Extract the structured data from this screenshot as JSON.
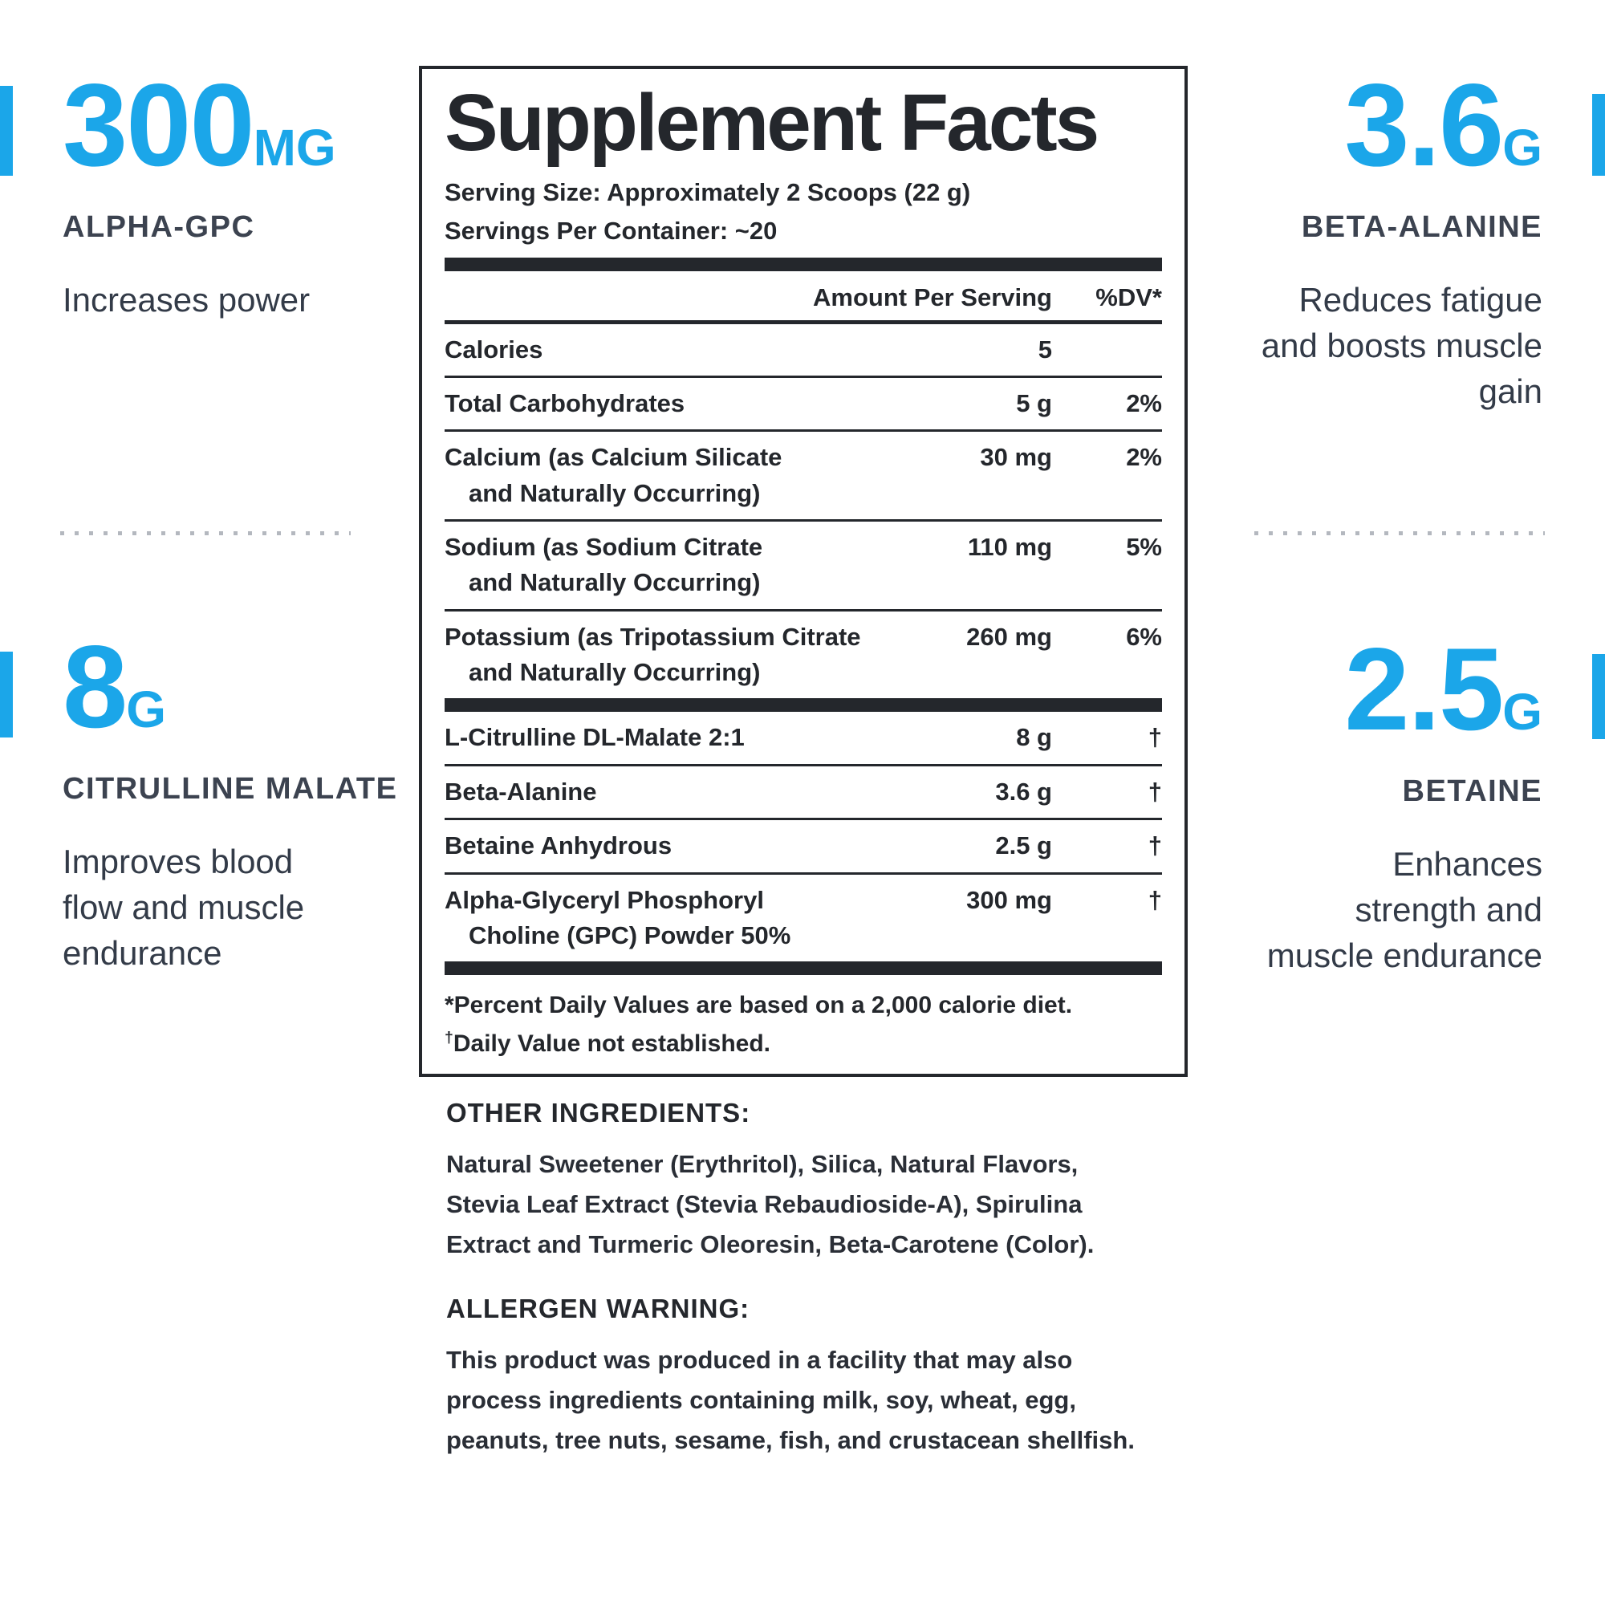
{
  "accent_blue": "#1ba6e9",
  "callouts": {
    "top_left": {
      "value": "300",
      "unit": "MG",
      "name": "ALPHA-GPC",
      "desc_lines": [
        "Increases power"
      ]
    },
    "mid_left": {
      "value": "8",
      "unit": "G",
      "name": "CITRULLINE MALATE",
      "desc_lines": [
        "Improves blood",
        "flow and muscle",
        "endurance"
      ]
    },
    "top_right": {
      "value": "3.6",
      "unit": "G",
      "name": "BETA-ALANINE",
      "desc_lines": [
        "Reduces fatigue",
        "and boosts muscle",
        "gain"
      ]
    },
    "mid_right": {
      "value": "2.5",
      "unit": "G",
      "name": "BETAINE",
      "desc_lines": [
        "Enhances",
        "strength and",
        "muscle endurance"
      ]
    }
  },
  "panel": {
    "title": "Supplement Facts",
    "serving_size": "Serving Size: Approximately 2 Scoops (22 g)",
    "servings_per_container": "Servings Per Container: ~20",
    "col_amount": "Amount Per Serving",
    "col_dv": "%DV*",
    "rows": [
      {
        "label": "Calories",
        "label2": "",
        "amount": "5",
        "dv": ""
      },
      {
        "label": "Total Carbohydrates",
        "label2": "",
        "amount": "5 g",
        "dv": "2%"
      },
      {
        "label": "Calcium (as Calcium Silicate",
        "label2": "and Naturally Occurring)",
        "amount": "30 mg",
        "dv": "2%"
      },
      {
        "label": "Sodium (as Sodium Citrate",
        "label2": "and Naturally Occurring)",
        "amount": "110 mg",
        "dv": "5%"
      },
      {
        "label": "Potassium (as Tripotassium Citrate",
        "label2": "and Naturally Occurring)",
        "amount": "260 mg",
        "dv": "6%"
      },
      {
        "label": "L-Citrulline DL-Malate 2:1",
        "label2": "",
        "amount": "8 g",
        "dv": "†"
      },
      {
        "label": "Beta-Alanine",
        "label2": "",
        "amount": "3.6 g",
        "dv": "†"
      },
      {
        "label": "Betaine Anhydrous",
        "label2": "",
        "amount": "2.5 g",
        "dv": "†"
      },
      {
        "label": "Alpha-Glyceryl Phosphoryl",
        "label2": "Choline (GPC) Powder 50%",
        "amount": "300 mg",
        "dv": "†"
      }
    ],
    "footnote1": "*Percent Daily Values are based on a 2,000 calorie diet.",
    "footnote2_symbol": "†",
    "footnote2": "Daily Value not established."
  },
  "other_ingredients": {
    "heading": "OTHER INGREDIENTS:",
    "lines": [
      "Natural Sweetener (Erythritol), Silica, Natural Flavors,",
      "Stevia Leaf Extract (Stevia Rebaudioside-A), Spirulina",
      "Extract and Turmeric Oleoresin, Beta-Carotene (Color)."
    ]
  },
  "allergen": {
    "heading": "ALLERGEN WARNING:",
    "lines": [
      "This product was produced in a facility that may also",
      "process ingredients containing milk, soy, wheat, egg,",
      "peanuts, tree nuts, sesame, fish, and crustacean shellfish."
    ]
  }
}
